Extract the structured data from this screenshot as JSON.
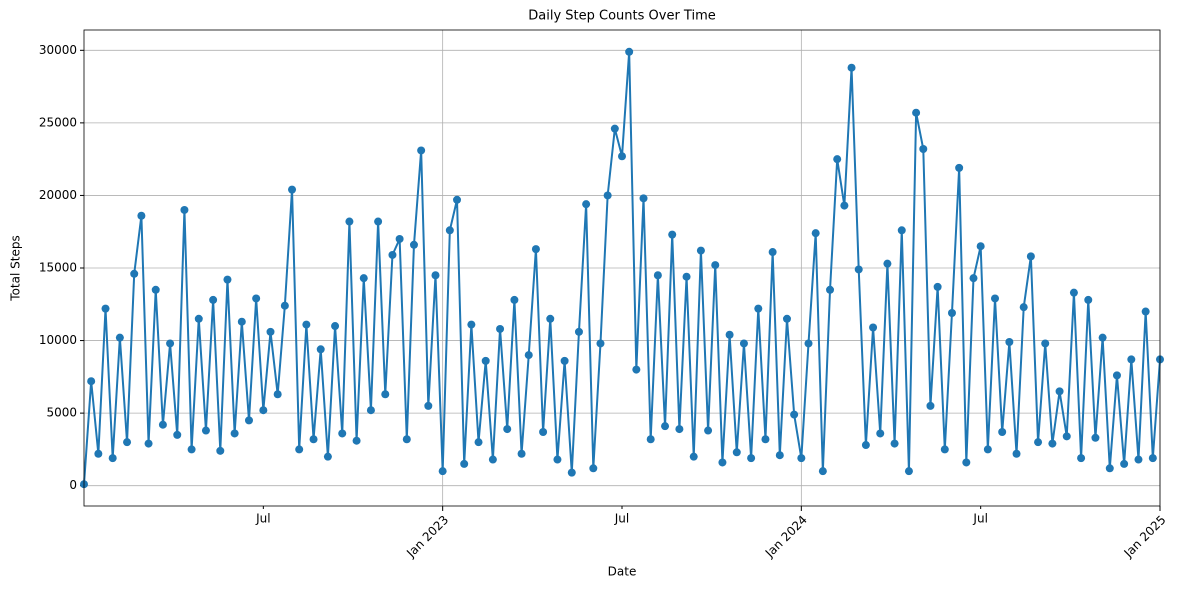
{
  "chart_data": {
    "type": "line",
    "title": "Daily Step Counts Over Time",
    "xlabel": "Date",
    "ylabel": "Total Steps",
    "color": "#1f77b4",
    "marker": "circle",
    "grid": true,
    "xlim": [
      2022,
      2025
    ],
    "xticks": [
      {
        "value": 2023,
        "label": "Jan 2023"
      },
      {
        "value": 2024,
        "label": "Jan 2024"
      },
      {
        "value": 2025,
        "label": "Jan 2025"
      }
    ],
    "xminorticks": [
      {
        "value": 2022.5,
        "label": "Jul"
      },
      {
        "value": 2023.5,
        "label": "Jul"
      },
      {
        "value": 2024.5,
        "label": "Jul"
      }
    ],
    "ylim": [
      -1400,
      31400
    ],
    "yticks": [
      0,
      5000,
      10000,
      15000,
      20000,
      25000,
      30000
    ],
    "x": [
      2022,
      2022.02,
      2022.04,
      2022.06,
      2022.08,
      2022.1,
      2022.12,
      2022.14,
      2022.16,
      2022.18,
      2022.2,
      2022.22,
      2022.24,
      2022.26,
      2022.28,
      2022.3,
      2022.32,
      2022.34,
      2022.36,
      2022.38,
      2022.4,
      2022.42,
      2022.44,
      2022.46,
      2022.48,
      2022.5,
      2022.52,
      2022.54,
      2022.56,
      2022.58,
      2022.6,
      2022.62,
      2022.64,
      2022.66,
      2022.68,
      2022.7,
      2022.72,
      2022.74,
      2022.76,
      2022.78,
      2022.8,
      2022.82,
      2022.84,
      2022.86,
      2022.88,
      2022.9,
      2022.92,
      2022.94,
      2022.96,
      2022.98,
      2023,
      2023.02,
      2023.04,
      2023.06,
      2023.08,
      2023.1,
      2023.12,
      2023.14,
      2023.16,
      2023.18,
      2023.2,
      2023.22,
      2023.24,
      2023.26,
      2023.28,
      2023.3,
      2023.32,
      2023.34,
      2023.36,
      2023.38,
      2023.4,
      2023.42,
      2023.44,
      2023.46,
      2023.48,
      2023.5,
      2023.52,
      2023.54,
      2023.56,
      2023.58,
      2023.6,
      2023.62,
      2023.64,
      2023.66,
      2023.68,
      2023.7,
      2023.72,
      2023.74,
      2023.76,
      2023.78,
      2023.8,
      2023.82,
      2023.84,
      2023.86,
      2023.88,
      2023.9,
      2023.92,
      2023.94,
      2023.96,
      2023.98,
      2024,
      2024.02,
      2024.04,
      2024.06,
      2024.08,
      2024.1,
      2024.12,
      2024.14,
      2024.16,
      2024.18,
      2024.2,
      2024.22,
      2024.24,
      2024.26,
      2024.28,
      2024.3,
      2024.32,
      2024.34,
      2024.36,
      2024.38,
      2024.4,
      2024.42,
      2024.44,
      2024.46,
      2024.48,
      2024.5,
      2024.52,
      2024.54,
      2024.56,
      2024.58,
      2024.6,
      2024.62,
      2024.64,
      2024.66,
      2024.68,
      2024.7,
      2024.72,
      2024.74,
      2024.76,
      2024.78,
      2024.8,
      2024.82,
      2024.84,
      2024.86,
      2024.88,
      2024.9,
      2024.92,
      2024.94,
      2024.96,
      2024.98,
      2025
    ],
    "values": [
      100,
      7200,
      2200,
      12200,
      1900,
      10200,
      3000,
      14600,
      18600,
      2900,
      13500,
      4200,
      9800,
      3500,
      19000,
      2500,
      11500,
      3800,
      12800,
      2400,
      14200,
      3600,
      11300,
      4500,
      12900,
      5200,
      10600,
      6300,
      12400,
      20400,
      2500,
      11100,
      3200,
      9400,
      2000,
      11000,
      3600,
      18200,
      3100,
      14300,
      5200,
      18200,
      6300,
      15900,
      17000,
      3200,
      16600,
      23100,
      5500,
      14500,
      1000,
      17600,
      19700,
      1500,
      11100,
      3000,
      8600,
      1800,
      10800,
      3900,
      12800,
      2200,
      9000,
      16300,
      3700,
      11500,
      1800,
      8600,
      900,
      10600,
      19400,
      1200,
      9800,
      20000,
      24600,
      22700,
      29900,
      8000,
      19800,
      3200,
      14500,
      4100,
      17300,
      3900,
      14400,
      2000,
      16200,
      3800,
      15200,
      1600,
      10400,
      2300,
      9800,
      1900,
      12200,
      3200,
      16100,
      2100,
      11500,
      4900,
      1900,
      9800,
      17400,
      1000,
      13500,
      22500,
      19300,
      28800,
      14900,
      2800,
      10900,
      3600,
      15300,
      2900,
      17600,
      1000,
      25700,
      23200,
      5500,
      13700,
      2500,
      11900,
      21900,
      1600,
      14300,
      16500,
      2500,
      12900,
      3700,
      9900,
      2200,
      12300,
      15800,
      3000,
      9800,
      2900,
      6500,
      3400,
      13300,
      1900,
      12800,
      3300,
      10200,
      1200,
      7600,
      1500,
      8700,
      1800,
      12000,
      1900,
      8700
    ]
  }
}
